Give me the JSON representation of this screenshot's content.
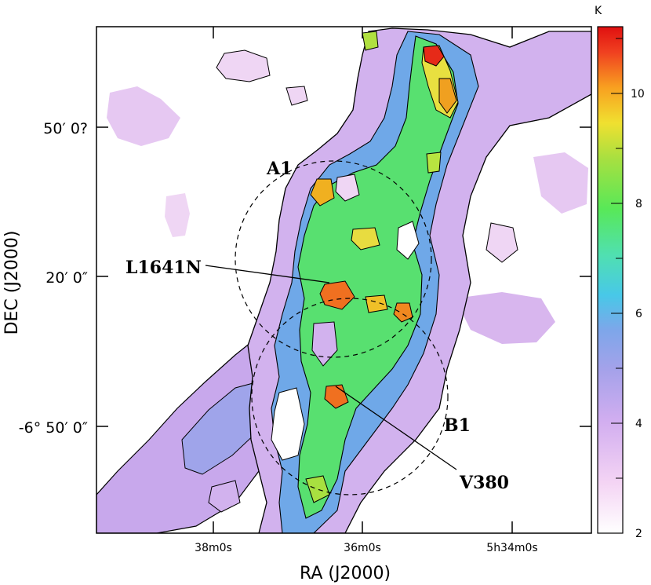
{
  "map": {
    "x_axis_title": "RA (J2000)",
    "y_axis_title": "DEC (J2000)",
    "x_ticks": [
      "38m0s",
      "36m0s",
      "5h34m0s"
    ],
    "y_ticks": [
      "50′ 0?",
      "20′ 0″",
      "-6° 50′ 0″"
    ],
    "colorbar": {
      "unit": "K",
      "ticks": [
        "2",
        "4",
        "6",
        "8",
        "10"
      ],
      "range": [
        2,
        11.2
      ],
      "colors": [
        "#ffffff",
        "#f0c8f0",
        "#c8a0e6",
        "#9c9ce6",
        "#6ea6e6",
        "#40d0e6",
        "#50e0a0",
        "#58e858",
        "#a0e040",
        "#f0e030",
        "#f8a020",
        "#f04020",
        "#e01010"
      ]
    },
    "annotations": [
      "A1",
      "L1641N",
      "B1",
      "V380"
    ]
  }
}
